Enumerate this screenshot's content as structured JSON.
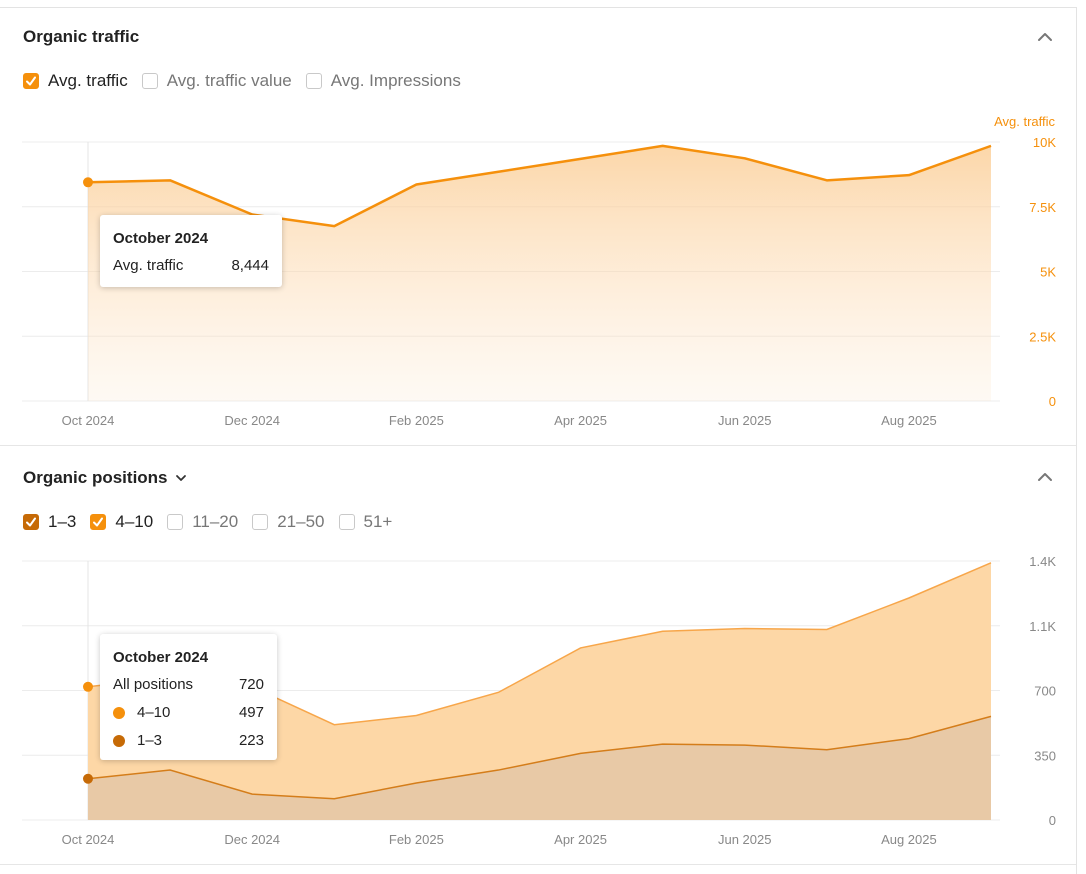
{
  "traffic_panel": {
    "title": "Organic traffic",
    "checkboxes": [
      {
        "label": "Avg. traffic",
        "checked": true
      },
      {
        "label": "Avg. traffic value",
        "checked": false
      },
      {
        "label": "Avg. Impressions",
        "checked": false
      }
    ],
    "axis_title": "Avg. traffic",
    "tooltip": {
      "title": "October 2024",
      "label": "Avg. traffic",
      "value": "8,444"
    }
  },
  "positions_panel": {
    "title": "Organic positions",
    "checkboxes": [
      {
        "label": "1–3",
        "checked": true,
        "style": "dark"
      },
      {
        "label": "4–10",
        "checked": true,
        "style": "light"
      },
      {
        "label": "11–20",
        "checked": false
      },
      {
        "label": "21–50",
        "checked": false
      },
      {
        "label": "51+",
        "checked": false
      }
    ],
    "tooltip": {
      "title": "October 2024",
      "rows": [
        {
          "label": "All positions",
          "value": "720"
        },
        {
          "label": "4–10",
          "value": "497"
        },
        {
          "label": "1–3",
          "value": "223"
        }
      ]
    }
  },
  "colors": {
    "accent": "#f5900c",
    "dark_series": "#c66a06",
    "area_light": "#fdd7a6",
    "area_dark": "#e8c9a6"
  },
  "chart_data": [
    {
      "type": "area",
      "x": [
        "Oct 2024",
        "Nov 2024",
        "Dec 2024",
        "Jan 2025",
        "Feb 2025",
        "Mar 2025",
        "Apr 2025",
        "May 2025",
        "Jun 2025",
        "Jul 2025",
        "Aug 2025",
        "Sep 2025"
      ],
      "xticks": [
        "Oct 2024",
        "Dec 2024",
        "Feb 2025",
        "Apr 2025",
        "Jun 2025",
        "Aug 2025"
      ],
      "series": [
        {
          "name": "Avg. traffic",
          "values": [
            8444,
            8520,
            7200,
            6750,
            8360,
            8850,
            9350,
            9850,
            9370,
            8520,
            8720,
            9850
          ]
        }
      ],
      "yticks": [
        "10K",
        "7.5K",
        "5K",
        "2.5K",
        "0"
      ],
      "ylim": [
        0,
        10000
      ],
      "ylabel": "Avg. traffic"
    },
    {
      "type": "area",
      "x": [
        "Oct 2024",
        "Nov 2024",
        "Dec 2024",
        "Jan 2025",
        "Feb 2025",
        "Mar 2025",
        "Apr 2025",
        "May 2025",
        "Jun 2025",
        "Jul 2025",
        "Aug 2025",
        "Sep 2025"
      ],
      "xticks": [
        "Oct 2024",
        "Dec 2024",
        "Feb 2025",
        "Apr 2025",
        "Jun 2025",
        "Aug 2025"
      ],
      "stacked": true,
      "series": [
        {
          "name": "1–3",
          "values": [
            223,
            270,
            140,
            115,
            200,
            270,
            360,
            410,
            405,
            380,
            440,
            560
          ]
        },
        {
          "name": "4–10",
          "values": [
            497,
            500,
            580,
            400,
            365,
            420,
            570,
            610,
            630,
            650,
            760,
            830
          ]
        }
      ],
      "yticks": [
        "1.4K",
        "1.1K",
        "700",
        "350",
        "0"
      ],
      "ylim": [
        0,
        1400
      ]
    }
  ]
}
